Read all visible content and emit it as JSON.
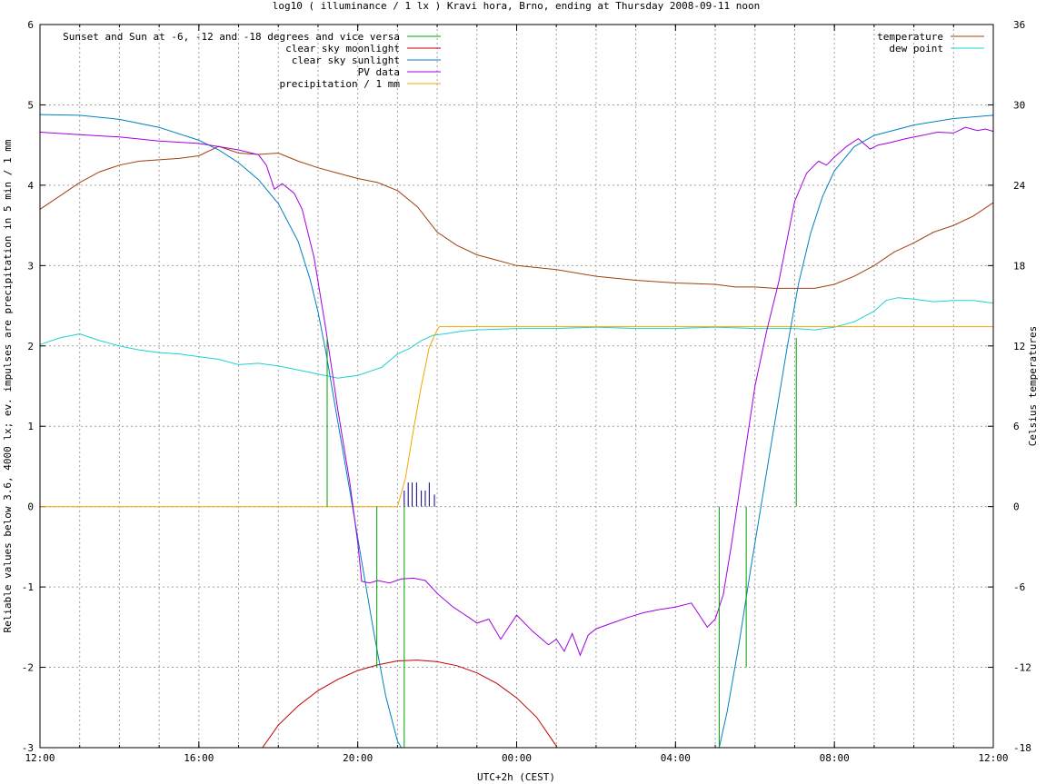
{
  "chart_data": {
    "type": "line",
    "title": "log10 ( illuminance / 1 lx ) Kravi hora, Brno, ending at Thursday 2008-09-11 noon",
    "xlabel": "UTC+2h (CEST)",
    "ylabel": "Reliable values below 3.6, 4000 lx; ev. impulses are precipitation in 5 min / 1 mm",
    "y2label": "Celsius temperatures",
    "xlim": [
      12,
      36
    ],
    "ylim": [
      -3,
      6
    ],
    "y2lim": [
      -18,
      36
    ],
    "x_ticks": [
      {
        "x": 12,
        "label": "12:00"
      },
      {
        "x": 16,
        "label": "16:00"
      },
      {
        "x": 20,
        "label": "20:00"
      },
      {
        "x": 24,
        "label": "00:00"
      },
      {
        "x": 28,
        "label": "04:00"
      },
      {
        "x": 32,
        "label": "08:00"
      },
      {
        "x": 36,
        "label": "12:00"
      }
    ],
    "y_ticks": [
      {
        "y": -3,
        "label": "-3"
      },
      {
        "y": -2,
        "label": "-2"
      },
      {
        "y": -1,
        "label": "-1"
      },
      {
        "y": 0,
        "label": "0"
      },
      {
        "y": 1,
        "label": "1"
      },
      {
        "y": 2,
        "label": "2"
      },
      {
        "y": 3,
        "label": "3"
      },
      {
        "y": 4,
        "label": "4"
      },
      {
        "y": 5,
        "label": "5"
      },
      {
        "y": 6,
        "label": "6"
      }
    ],
    "y2_ticks": [
      {
        "y": -18,
        "label": "-18"
      },
      {
        "y": -12,
        "label": "-12"
      },
      {
        "y": -6,
        "label": "-6"
      },
      {
        "y": 0,
        "label": "0"
      },
      {
        "y": 6,
        "label": "6"
      },
      {
        "y": 12,
        "label": "12"
      },
      {
        "y": 18,
        "label": "18"
      },
      {
        "y": 24,
        "label": "24"
      },
      {
        "y": 30,
        "label": "30"
      },
      {
        "y": 36,
        "label": "36"
      }
    ],
    "grid": true,
    "legend_left": [
      {
        "label": "Sunset and Sun at -6, -12 and -18 degrees and vice versa",
        "color": "#00a000"
      },
      {
        "label": "clear sky moonlight",
        "color": "#c00000"
      },
      {
        "label": "clear sky sunlight",
        "color": "#0080c0"
      },
      {
        "label": "PV data",
        "color": "#a000e0"
      },
      {
        "label": "precipitation / 1 mm",
        "color": "#f0a800"
      }
    ],
    "legend_right": [
      {
        "label": "temperature",
        "color": "#a04010"
      },
      {
        "label": "dew point",
        "color": "#20d0d0"
      }
    ],
    "sun_event_markers": [
      {
        "x": 19.23,
        "y": 2.1
      },
      {
        "x": 20.48,
        "y": -2.0
      },
      {
        "x": 21.17,
        "y": -3.0
      },
      {
        "x": 29.1,
        "y": -3.0
      },
      {
        "x": 29.78,
        "y": -2.0
      },
      {
        "x": 31.04,
        "y": 2.1
      }
    ],
    "precipitation_impulses": [
      {
        "x": 21.17,
        "y": 0.2
      },
      {
        "x": 21.27,
        "y": 0.3
      },
      {
        "x": 21.37,
        "y": 0.3
      },
      {
        "x": 21.48,
        "y": 0.3
      },
      {
        "x": 21.6,
        "y": 0.2
      },
      {
        "x": 21.7,
        "y": 0.2
      },
      {
        "x": 21.8,
        "y": 0.3
      },
      {
        "x": 21.93,
        "y": 0.15
      }
    ],
    "series": [
      {
        "name": "clear sky moonlight",
        "color": "#c00000",
        "axis": "y",
        "x": [
          17.6,
          18.0,
          18.5,
          19.0,
          19.5,
          20.0,
          20.5,
          21.0,
          21.5,
          22.0,
          22.5,
          23.0,
          23.5,
          24.0,
          24.5,
          25.0
        ],
        "y": [
          -3.0,
          -2.72,
          -2.48,
          -2.29,
          -2.15,
          -2.04,
          -1.97,
          -1.92,
          -1.91,
          -1.93,
          -1.98,
          -2.07,
          -2.2,
          -2.38,
          -2.62,
          -2.98
        ]
      },
      {
        "name": "clear sky sunlight",
        "color": "#0080c0",
        "axis": "y",
        "x": [
          12.0,
          13.0,
          14.0,
          15.0,
          16.0,
          16.5,
          17.0,
          17.5,
          18.0,
          18.5,
          18.8,
          19.0,
          19.2,
          19.5,
          19.8,
          20.1,
          20.4,
          20.7,
          21.0,
          21.1,
          29.1,
          29.3,
          29.6,
          29.9,
          30.2,
          30.5,
          30.8,
          31.1,
          31.4,
          31.7,
          32.0,
          32.5,
          33.0,
          34.0,
          35.0,
          36.0
        ],
        "y": [
          4.88,
          4.87,
          4.82,
          4.72,
          4.56,
          4.44,
          4.28,
          4.07,
          3.77,
          3.3,
          2.83,
          2.42,
          1.92,
          1.05,
          0.2,
          -0.68,
          -1.55,
          -2.35,
          -2.92,
          -3.0,
          -3.0,
          -2.55,
          -1.7,
          -0.75,
          0.15,
          1.05,
          1.95,
          2.78,
          3.4,
          3.86,
          4.18,
          4.48,
          4.62,
          4.75,
          4.83,
          4.87
        ]
      },
      {
        "name": "PV data",
        "color": "#a000e0",
        "axis": "y",
        "x": [
          12.0,
          13.0,
          14.0,
          15.0,
          16.0,
          16.5,
          17.0,
          17.5,
          17.7,
          17.9,
          18.1,
          18.4,
          18.6,
          18.9,
          19.2,
          19.5,
          19.8,
          20.0,
          20.1,
          20.3,
          20.5,
          20.8,
          21.1,
          21.4,
          21.7,
          22.0,
          22.4,
          22.8,
          23.0,
          23.3,
          23.6,
          24.0,
          24.4,
          24.8,
          25.0,
          25.2,
          25.4,
          25.6,
          25.8,
          26.0,
          26.4,
          26.8,
          27.2,
          27.6,
          28.0,
          28.4,
          28.6,
          28.8,
          29.0,
          29.2,
          29.4,
          29.7,
          30.0,
          30.3,
          30.6,
          30.8,
          31.0,
          31.3,
          31.6,
          31.8,
          32.0,
          32.3,
          32.6,
          32.9,
          33.1,
          33.4,
          33.8,
          34.2,
          34.6,
          35.0,
          35.3,
          35.6,
          35.8,
          36.0
        ],
        "y": [
          4.66,
          4.63,
          4.6,
          4.55,
          4.52,
          4.48,
          4.44,
          4.38,
          4.25,
          3.95,
          4.02,
          3.9,
          3.7,
          3.1,
          2.2,
          1.2,
          0.3,
          -0.45,
          -0.93,
          -0.95,
          -0.92,
          -0.95,
          -0.9,
          -0.89,
          -0.92,
          -1.08,
          -1.25,
          -1.38,
          -1.45,
          -1.4,
          -1.65,
          -1.35,
          -1.55,
          -1.72,
          -1.65,
          -1.8,
          -1.58,
          -1.85,
          -1.6,
          -1.52,
          -1.45,
          -1.38,
          -1.32,
          -1.28,
          -1.25,
          -1.2,
          -1.35,
          -1.5,
          -1.4,
          -1.1,
          -0.5,
          0.5,
          1.5,
          2.2,
          2.8,
          3.3,
          3.8,
          4.15,
          4.3,
          4.25,
          4.35,
          4.48,
          4.58,
          4.45,
          4.5,
          4.53,
          4.58,
          4.62,
          4.66,
          4.65,
          4.72,
          4.68,
          4.7,
          4.67
        ]
      },
      {
        "name": "precipitation / 1 mm",
        "color": "#f0a800",
        "axis": "y",
        "x": [
          12.0,
          21.0,
          21.2,
          21.4,
          21.6,
          21.8,
          21.95,
          22.05,
          36.0
        ],
        "y": [
          0.0,
          0.0,
          0.35,
          0.95,
          1.5,
          1.98,
          2.15,
          2.24,
          2.24
        ]
      },
      {
        "name": "temperature",
        "color": "#a04010",
        "axis": "y2",
        "x": [
          12.0,
          12.5,
          13.0,
          13.5,
          14.0,
          14.5,
          15.0,
          15.5,
          16.0,
          16.5,
          17.0,
          17.5,
          18.0,
          18.5,
          19.0,
          19.5,
          20.0,
          20.5,
          21.0,
          21.5,
          22.0,
          22.5,
          23.0,
          23.5,
          24.0,
          25.0,
          26.0,
          27.0,
          28.0,
          29.0,
          29.5,
          30.0,
          30.5,
          31.0,
          31.5,
          32.0,
          32.5,
          33.0,
          33.5,
          34.0,
          34.5,
          35.0,
          35.5,
          36.0
        ],
        "y": [
          22.2,
          23.2,
          24.2,
          25.0,
          25.5,
          25.8,
          25.9,
          26.0,
          26.2,
          26.9,
          26.4,
          26.3,
          26.4,
          25.8,
          25.3,
          24.9,
          24.5,
          24.2,
          23.6,
          22.4,
          20.5,
          19.5,
          18.8,
          18.4,
          18.0,
          17.7,
          17.2,
          16.9,
          16.7,
          16.6,
          16.4,
          16.4,
          16.3,
          16.3,
          16.3,
          16.6,
          17.2,
          18.0,
          19.0,
          19.7,
          20.5,
          21.0,
          21.7,
          22.7
        ]
      },
      {
        "name": "dew point",
        "color": "#20d0d0",
        "axis": "y2",
        "x": [
          12.0,
          12.5,
          13.0,
          13.5,
          14.0,
          14.5,
          15.0,
          15.5,
          16.0,
          16.5,
          17.0,
          17.5,
          18.0,
          18.5,
          19.0,
          19.5,
          20.0,
          20.3,
          20.6,
          21.0,
          21.3,
          21.6,
          21.9,
          22.2,
          22.6,
          23.0,
          24.0,
          25.0,
          26.0,
          27.0,
          28.0,
          29.0,
          30.0,
          31.0,
          31.5,
          32.0,
          32.5,
          33.0,
          33.3,
          33.6,
          34.0,
          34.5,
          35.0,
          35.5,
          36.0
        ],
        "y": [
          12.1,
          12.6,
          12.9,
          12.4,
          12.0,
          11.7,
          11.5,
          11.4,
          11.2,
          11.0,
          10.6,
          10.7,
          10.5,
          10.2,
          9.9,
          9.6,
          9.8,
          10.1,
          10.4,
          11.4,
          11.8,
          12.4,
          12.8,
          12.9,
          13.1,
          13.2,
          13.3,
          13.3,
          13.4,
          13.3,
          13.3,
          13.4,
          13.3,
          13.3,
          13.2,
          13.4,
          13.8,
          14.6,
          15.4,
          15.6,
          15.5,
          15.3,
          15.4,
          15.4,
          15.2
        ]
      }
    ]
  }
}
